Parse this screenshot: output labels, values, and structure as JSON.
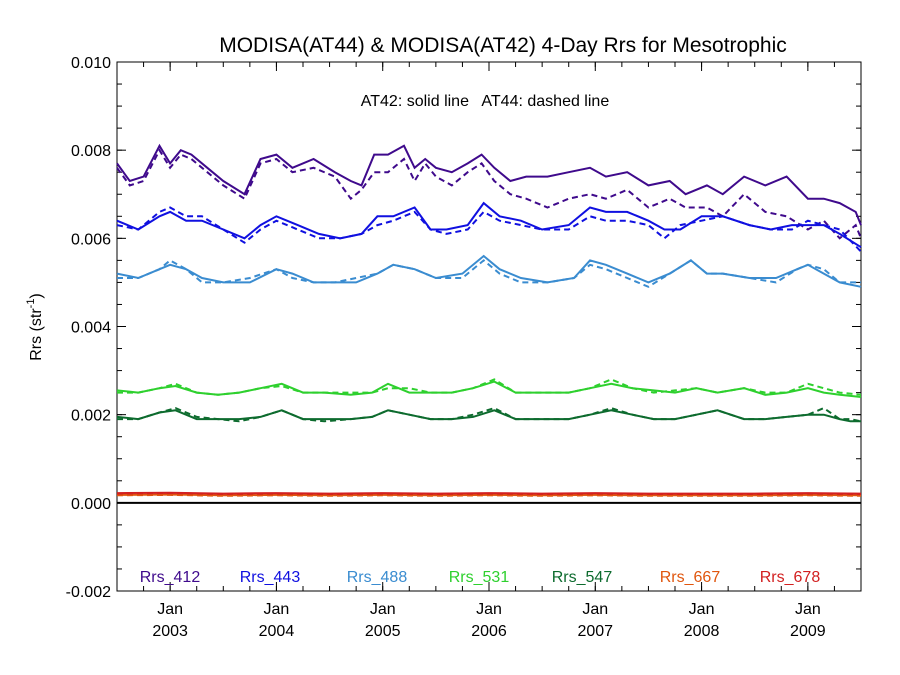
{
  "chart_data": {
    "type": "line",
    "title": "MODISA(AT44) & MODISA(AT42) 4-Day Rrs for Mesotrophic",
    "annotation": "AT42: solid line   AT44: dashed line",
    "ylabel": "Rrs (str",
    "ylabel_sup": "-1",
    "ylabel_close": ")",
    "ylim": [
      -0.002,
      0.01
    ],
    "xlim": [
      2002.5,
      2009.5
    ],
    "yticks": [
      {
        "value": -0.002,
        "label": "-0.002"
      },
      {
        "value": 0.0,
        "label": "0.000"
      },
      {
        "value": 0.002,
        "label": "0.002"
      },
      {
        "value": 0.004,
        "label": "0.004"
      },
      {
        "value": 0.006,
        "label": "0.006"
      },
      {
        "value": 0.008,
        "label": "0.008"
      },
      {
        "value": 0.01,
        "label": "0.010"
      }
    ],
    "xticks": [
      {
        "value": 2003.0,
        "month": "Jan",
        "year": "2003"
      },
      {
        "value": 2004.0,
        "month": "Jan",
        "year": "2004"
      },
      {
        "value": 2005.0,
        "month": "Jan",
        "year": "2005"
      },
      {
        "value": 2006.0,
        "month": "Jan",
        "year": "2006"
      },
      {
        "value": 2007.0,
        "month": "Jan",
        "year": "2007"
      },
      {
        "value": 2008.0,
        "month": "Jan",
        "year": "2008"
      },
      {
        "value": 2009.0,
        "month": "Jan",
        "year": "2009"
      }
    ],
    "zero_line": 0.0,
    "legend_placement": "bottom",
    "series": [
      {
        "name": "Rrs_412",
        "color": "#3f0a8c",
        "x": [
          2002.5,
          2002.62,
          2002.75,
          2002.9,
          2003.0,
          2003.1,
          2003.2,
          2003.35,
          2003.5,
          2003.7,
          2003.85,
          2004.0,
          2004.15,
          2004.35,
          2004.55,
          2004.7,
          2004.8,
          2004.92,
          2005.05,
          2005.2,
          2005.3,
          2005.4,
          2005.5,
          2005.65,
          2005.8,
          2005.93,
          2006.05,
          2006.2,
          2006.35,
          2006.55,
          2006.75,
          2006.95,
          2007.1,
          2007.3,
          2007.5,
          2007.7,
          2007.85,
          2008.05,
          2008.2,
          2008.4,
          2008.6,
          2008.8,
          2009.0,
          2009.15,
          2009.3,
          2009.45,
          2009.5
        ],
        "y_solid": [
          0.0077,
          0.0073,
          0.0074,
          0.0081,
          0.0077,
          0.008,
          0.0079,
          0.0076,
          0.0073,
          0.007,
          0.0078,
          0.0079,
          0.0076,
          0.0078,
          0.0075,
          0.0073,
          0.0072,
          0.0079,
          0.0079,
          0.0081,
          0.0076,
          0.0078,
          0.0076,
          0.0075,
          0.0077,
          0.0079,
          0.0076,
          0.0073,
          0.0074,
          0.0074,
          0.0075,
          0.0076,
          0.0074,
          0.0075,
          0.0072,
          0.0073,
          0.007,
          0.0072,
          0.007,
          0.0074,
          0.0072,
          0.0074,
          0.0069,
          0.0069,
          0.0068,
          0.0066,
          0.0063
        ],
        "y_dashed": [
          0.0076,
          0.0072,
          0.0073,
          0.008,
          0.0076,
          0.0079,
          0.0078,
          0.0075,
          0.0072,
          0.0069,
          0.0077,
          0.0078,
          0.0075,
          0.0076,
          0.0074,
          0.0069,
          0.0071,
          0.0075,
          0.0075,
          0.0078,
          0.0073,
          0.0077,
          0.0074,
          0.0072,
          0.0075,
          0.0077,
          0.0073,
          0.007,
          0.0069,
          0.0067,
          0.0069,
          0.007,
          0.0069,
          0.0071,
          0.0067,
          0.0069,
          0.0067,
          0.0067,
          0.0065,
          0.007,
          0.0066,
          0.0065,
          0.0062,
          0.0064,
          0.006,
          0.0063,
          0.006
        ]
      },
      {
        "name": "Rrs_443",
        "color": "#1010e0",
        "x": [
          2002.5,
          2002.7,
          2002.9,
          2003.0,
          2003.15,
          2003.3,
          2003.5,
          2003.7,
          2003.85,
          2004.0,
          2004.2,
          2004.4,
          2004.6,
          2004.8,
          2004.95,
          2005.1,
          2005.3,
          2005.45,
          2005.6,
          2005.8,
          2005.95,
          2006.1,
          2006.3,
          2006.5,
          2006.75,
          2006.95,
          2007.1,
          2007.3,
          2007.5,
          2007.65,
          2007.8,
          2008.0,
          2008.2,
          2008.45,
          2008.65,
          2008.85,
          2009.0,
          2009.15,
          2009.3,
          2009.5
        ],
        "y_solid": [
          0.0064,
          0.0062,
          0.0065,
          0.0066,
          0.0064,
          0.0064,
          0.0062,
          0.006,
          0.0063,
          0.0065,
          0.0063,
          0.0061,
          0.006,
          0.0061,
          0.0065,
          0.0065,
          0.0067,
          0.0062,
          0.0062,
          0.0063,
          0.0068,
          0.0065,
          0.0064,
          0.0062,
          0.0063,
          0.0067,
          0.0066,
          0.0066,
          0.0064,
          0.0062,
          0.0062,
          0.0065,
          0.0065,
          0.0063,
          0.0062,
          0.0063,
          0.0063,
          0.0063,
          0.0061,
          0.0058
        ],
        "y_dashed": [
          0.0063,
          0.0062,
          0.0066,
          0.0067,
          0.0065,
          0.0065,
          0.0062,
          0.0059,
          0.0062,
          0.0064,
          0.0062,
          0.006,
          0.006,
          0.0061,
          0.0063,
          0.0064,
          0.0066,
          0.0062,
          0.0061,
          0.0062,
          0.0066,
          0.0064,
          0.0063,
          0.0062,
          0.0062,
          0.0065,
          0.0064,
          0.0064,
          0.0063,
          0.006,
          0.0063,
          0.0064,
          0.0065,
          0.0063,
          0.0062,
          0.0062,
          0.0064,
          0.0063,
          0.0062,
          0.0057
        ]
      },
      {
        "name": "Rrs_488",
        "color": "#3a8cd0",
        "x": [
          2002.5,
          2002.7,
          2002.9,
          2003.0,
          2003.15,
          2003.3,
          2003.5,
          2003.75,
          2004.0,
          2004.15,
          2004.35,
          2004.55,
          2004.75,
          2004.95,
          2005.1,
          2005.3,
          2005.5,
          2005.75,
          2005.95,
          2006.1,
          2006.3,
          2006.55,
          2006.8,
          2006.95,
          2007.1,
          2007.3,
          2007.5,
          2007.7,
          2007.9,
          2008.05,
          2008.2,
          2008.45,
          2008.7,
          2008.9,
          2009.0,
          2009.15,
          2009.3,
          2009.5
        ],
        "y_solid": [
          0.0052,
          0.0051,
          0.0053,
          0.0054,
          0.0053,
          0.0051,
          0.005,
          0.005,
          0.0053,
          0.0052,
          0.005,
          0.005,
          0.005,
          0.0052,
          0.0054,
          0.0053,
          0.0051,
          0.0052,
          0.0056,
          0.0053,
          0.0051,
          0.005,
          0.0051,
          0.0055,
          0.0054,
          0.0052,
          0.005,
          0.0052,
          0.0055,
          0.0052,
          0.0052,
          0.0051,
          0.0051,
          0.0053,
          0.0054,
          0.0052,
          0.005,
          0.0049
        ],
        "y_dashed": [
          0.0051,
          0.0051,
          0.0053,
          0.0055,
          0.0053,
          0.005,
          0.005,
          0.0051,
          0.0053,
          0.0051,
          0.005,
          0.005,
          0.0051,
          0.0052,
          0.0054,
          0.0053,
          0.0051,
          0.0051,
          0.0055,
          0.0052,
          0.005,
          0.005,
          0.0051,
          0.0054,
          0.0053,
          0.0051,
          0.0049,
          0.0052,
          0.0055,
          0.0052,
          0.0052,
          0.0051,
          0.005,
          0.0053,
          0.0054,
          0.0053,
          0.005,
          0.005
        ]
      },
      {
        "name": "Rrs_531",
        "color": "#2ed02e",
        "x": [
          2002.5,
          2002.7,
          2002.9,
          2003.05,
          2003.25,
          2003.45,
          2003.65,
          2003.85,
          2004.05,
          2004.25,
          2004.45,
          2004.7,
          2004.9,
          2005.05,
          2005.25,
          2005.45,
          2005.65,
          2005.85,
          2006.05,
          2006.25,
          2006.5,
          2006.75,
          2006.95,
          2007.15,
          2007.35,
          2007.55,
          2007.75,
          2007.95,
          2008.15,
          2008.4,
          2008.6,
          2008.8,
          2009.0,
          2009.15,
          2009.3,
          2009.5
        ],
        "y_solid": [
          0.00255,
          0.0025,
          0.0026,
          0.00265,
          0.0025,
          0.00245,
          0.0025,
          0.0026,
          0.0027,
          0.0025,
          0.0025,
          0.00245,
          0.0025,
          0.0027,
          0.0025,
          0.0025,
          0.0025,
          0.0026,
          0.00275,
          0.0025,
          0.0025,
          0.0025,
          0.0026,
          0.0027,
          0.0026,
          0.00255,
          0.0025,
          0.0026,
          0.0025,
          0.0026,
          0.00245,
          0.0025,
          0.0026,
          0.0025,
          0.00245,
          0.0024
        ],
        "y_dashed": [
          0.0025,
          0.0025,
          0.0026,
          0.0027,
          0.0025,
          0.00245,
          0.0025,
          0.0026,
          0.00265,
          0.0025,
          0.0025,
          0.0025,
          0.0025,
          0.0026,
          0.0026,
          0.0025,
          0.0025,
          0.0026,
          0.0028,
          0.0025,
          0.0025,
          0.0025,
          0.0026,
          0.0028,
          0.0026,
          0.0025,
          0.00255,
          0.0026,
          0.0025,
          0.0026,
          0.0025,
          0.0025,
          0.0027,
          0.0026,
          0.0025,
          0.00245
        ]
      },
      {
        "name": "Rrs_547",
        "color": "#0d6b2e",
        "x": [
          2002.5,
          2002.7,
          2002.9,
          2003.05,
          2003.25,
          2003.45,
          2003.65,
          2003.85,
          2004.05,
          2004.25,
          2004.45,
          2004.7,
          2004.9,
          2005.05,
          2005.25,
          2005.45,
          2005.65,
          2005.85,
          2006.05,
          2006.25,
          2006.5,
          2006.75,
          2006.95,
          2007.15,
          2007.35,
          2007.55,
          2007.75,
          2007.95,
          2008.15,
          2008.4,
          2008.6,
          2008.8,
          2009.0,
          2009.15,
          2009.3,
          2009.4,
          2009.5
        ],
        "y_solid": [
          0.00195,
          0.0019,
          0.00205,
          0.0021,
          0.0019,
          0.0019,
          0.0019,
          0.00195,
          0.0021,
          0.0019,
          0.0019,
          0.0019,
          0.00195,
          0.0021,
          0.002,
          0.0019,
          0.0019,
          0.00195,
          0.0021,
          0.0019,
          0.0019,
          0.0019,
          0.002,
          0.0021,
          0.002,
          0.0019,
          0.0019,
          0.002,
          0.0021,
          0.0019,
          0.0019,
          0.00195,
          0.002,
          0.002,
          0.0019,
          0.00185,
          0.00185
        ],
        "y_dashed": [
          0.0019,
          0.0019,
          0.00205,
          0.00215,
          0.00195,
          0.0019,
          0.00185,
          0.00195,
          0.0021,
          0.0019,
          0.00185,
          0.0019,
          0.00195,
          0.0021,
          0.002,
          0.0019,
          0.0019,
          0.002,
          0.00215,
          0.0019,
          0.0019,
          0.0019,
          0.002,
          0.00215,
          0.002,
          0.0019,
          0.0019,
          0.002,
          0.0021,
          0.0019,
          0.0019,
          0.00195,
          0.002,
          0.00215,
          0.0019,
          0.0019,
          0.00185
        ]
      },
      {
        "name": "Rrs_667",
        "color": "#e0560e",
        "x": [
          2002.5,
          2003.0,
          2003.5,
          2004.0,
          2004.5,
          2005.0,
          2005.5,
          2006.0,
          2006.5,
          2007.0,
          2007.5,
          2008.0,
          2008.5,
          2009.0,
          2009.5
        ],
        "y_solid": [
          0.00018,
          0.00019,
          0.00017,
          0.00018,
          0.00017,
          0.00018,
          0.00017,
          0.00018,
          0.00017,
          0.00018,
          0.00017,
          0.00017,
          0.00017,
          0.00018,
          0.00017
        ],
        "y_dashed": [
          0.00017,
          0.00018,
          0.00016,
          0.00017,
          0.00016,
          0.00017,
          0.00016,
          0.00017,
          0.00016,
          0.00017,
          0.00016,
          0.00016,
          0.00016,
          0.00017,
          0.00016
        ]
      },
      {
        "name": "Rrs_678",
        "color": "#d22020",
        "x": [
          2002.5,
          2003.0,
          2003.5,
          2004.0,
          2004.5,
          2005.0,
          2005.5,
          2006.0,
          2006.5,
          2007.0,
          2007.5,
          2008.0,
          2008.5,
          2009.0,
          2009.5
        ],
        "y_solid": [
          0.00022,
          0.00023,
          0.00021,
          0.00022,
          0.00021,
          0.00022,
          0.00021,
          0.00022,
          0.00021,
          0.00022,
          0.00021,
          0.00021,
          0.00021,
          0.00022,
          0.00021
        ],
        "y_dashed": [
          0.00021,
          0.00022,
          0.0002,
          0.00021,
          0.0002,
          0.00021,
          0.0002,
          0.00021,
          0.0002,
          0.00021,
          0.0002,
          0.0002,
          0.0002,
          0.00021,
          0.0002
        ]
      }
    ]
  }
}
